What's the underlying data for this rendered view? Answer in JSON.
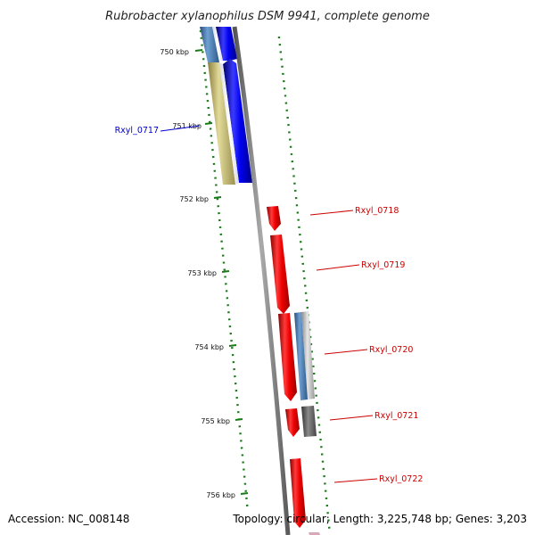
{
  "title": "Rubrobacter xylanophilus DSM 9941, complete genome",
  "footer": {
    "accession": "Accession: NC_008148",
    "summary": "Topology: circular; Length: 3,225,748 bp; Genes: 3,203"
  },
  "ticks": [
    "750 kbp",
    "751 kbp",
    "752 kbp",
    "753 kbp",
    "754 kbp",
    "755 kbp",
    "756 kbp"
  ],
  "genes": [
    {
      "label": "Rxyl_0717",
      "color": "#0000cc"
    },
    {
      "label": "Rxyl_0718",
      "color": "#cc0000"
    },
    {
      "label": "Rxyl_0719",
      "color": "#cc0000"
    },
    {
      "label": "Rxyl_0720",
      "color": "#cc0000"
    },
    {
      "label": "Rxyl_0721",
      "color": "#cc0000"
    },
    {
      "label": "Rxyl_0722",
      "color": "#cc0000"
    }
  ],
  "colors": {
    "backbone": "#808080",
    "forward_cds": "#0000ff",
    "reverse_cds": "#ff0000",
    "feature_steel_blue": "#4a7fb5",
    "feature_khaki": "#c8bf78",
    "feature_gray": "#666666",
    "dots": "#1a7a1a"
  }
}
